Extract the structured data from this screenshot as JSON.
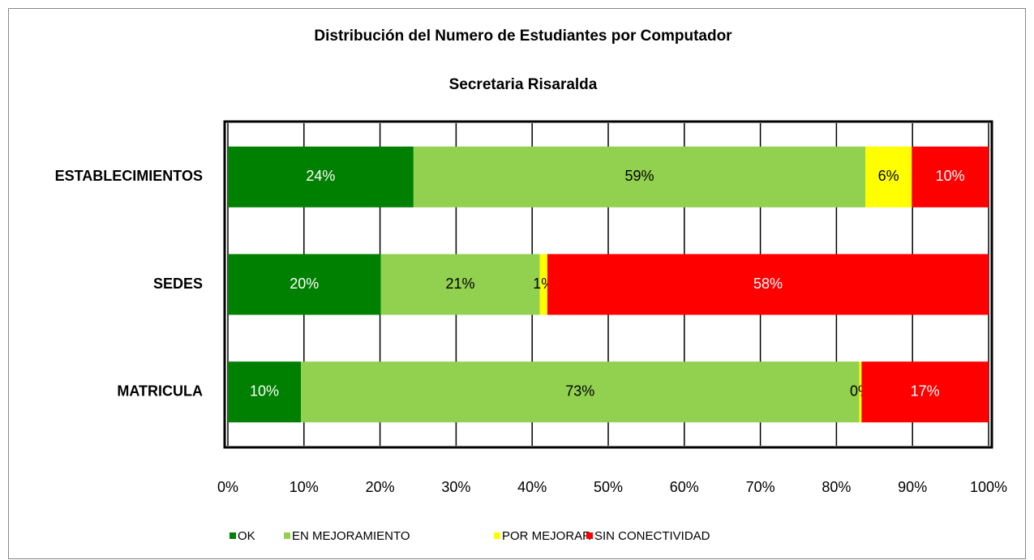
{
  "chart_data": {
    "type": "stacked_bar_horizontal",
    "title": "Distribución del Numero de Estudiantes por Computador",
    "subtitle": "Secretaria Risaralda",
    "categories": [
      "ESTABLECIMIENTOS",
      "SEDES",
      "MATRICULA"
    ],
    "series": [
      {
        "name": "OK",
        "color": "#008000",
        "label_color": "#ffffff",
        "values": [
          24.4,
          20.1,
          9.6
        ],
        "value_labels": [
          "24%",
          "20%",
          "10%"
        ]
      },
      {
        "name": "EN MEJORAMIENTO",
        "color": "#92d050",
        "label_color": "#000000",
        "values": [
          59.4,
          20.9,
          73.4
        ],
        "value_labels": [
          "59%",
          "21%",
          "73%"
        ]
      },
      {
        "name": "POR MEJORAR",
        "color": "#ffff00",
        "label_color": "#000000",
        "values": [
          6.1,
          1.0,
          0.3
        ],
        "value_labels": [
          "6%",
          "1%",
          "0%"
        ]
      },
      {
        "name": "SIN CONECTIVIDAD",
        "color": "#ff0000",
        "label_color": "#ffffff",
        "values": [
          10.1,
          58.0,
          16.7
        ],
        "value_labels": [
          "10%",
          "58%",
          "17%"
        ]
      }
    ],
    "xlim": [
      0,
      100
    ],
    "xticks": [
      {
        "value": 0,
        "label": "0%"
      },
      {
        "value": 10,
        "label": "10%"
      },
      {
        "value": 20,
        "label": "20%"
      },
      {
        "value": 30,
        "label": "30%"
      },
      {
        "value": 40,
        "label": "40%"
      },
      {
        "value": 50,
        "label": "50%"
      },
      {
        "value": 60,
        "label": "60%"
      },
      {
        "value": 70,
        "label": "70%"
      },
      {
        "value": 80,
        "label": "80%"
      },
      {
        "value": 90,
        "label": "90%"
      },
      {
        "value": 100,
        "label": "100%"
      }
    ],
    "grid": true,
    "legend": "bottom"
  }
}
